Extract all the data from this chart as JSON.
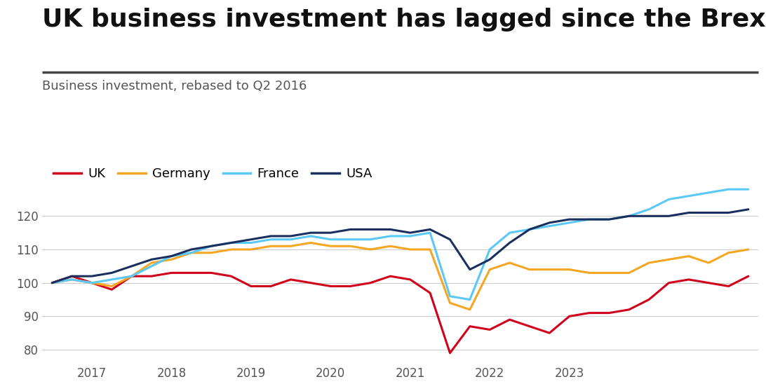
{
  "title": "UK business investment has lagged since the Brexit vote",
  "subtitle": "Business investment, rebased to Q2 2016",
  "title_fontsize": 26,
  "subtitle_fontsize": 13,
  "legend_fontsize": 13,
  "background_color": "#ffffff",
  "grid_color": "#cccccc",
  "series_order": [
    "UK",
    "Germany",
    "France",
    "USA"
  ],
  "series": {
    "UK": {
      "color": "#d0021b",
      "linewidth": 2.2,
      "data": [
        100,
        102,
        100,
        98,
        102,
        102,
        103,
        103,
        103,
        102,
        99,
        99,
        101,
        100,
        99,
        99,
        100,
        102,
        101,
        97,
        79,
        87,
        86,
        89,
        87,
        85,
        90,
        91,
        91,
        92,
        95,
        100,
        101,
        100,
        99,
        102
      ]
    },
    "Germany": {
      "color": "#f5a623",
      "linewidth": 2.2,
      "data": [
        100,
        101,
        100,
        99,
        102,
        106,
        107,
        109,
        109,
        110,
        110,
        111,
        111,
        112,
        111,
        111,
        110,
        111,
        110,
        110,
        94,
        92,
        104,
        106,
        104,
        104,
        104,
        103,
        103,
        103,
        106,
        107,
        108,
        106,
        109,
        110
      ]
    },
    "France": {
      "color": "#5bc8f5",
      "linewidth": 2.2,
      "data": [
        100,
        101,
        100,
        101,
        102,
        105,
        108,
        109,
        111,
        112,
        112,
        113,
        113,
        114,
        113,
        113,
        113,
        114,
        114,
        115,
        96,
        95,
        110,
        115,
        116,
        117,
        118,
        119,
        119,
        120,
        122,
        125,
        126,
        127,
        128,
        128
      ]
    },
    "USA": {
      "color": "#1a2f5e",
      "linewidth": 2.2,
      "data": [
        100,
        102,
        102,
        103,
        105,
        107,
        108,
        110,
        111,
        112,
        113,
        114,
        114,
        115,
        115,
        116,
        116,
        116,
        115,
        116,
        113,
        104,
        107,
        112,
        116,
        118,
        119,
        119,
        119,
        120,
        120,
        120,
        121,
        121,
        121,
        122
      ]
    }
  },
  "n_points": 36,
  "xtick_positions": [
    2,
    6,
    10,
    14,
    18,
    22,
    26
  ],
  "xtick_labels": [
    "2017",
    "2018",
    "2019",
    "2020",
    "2021",
    "2022",
    "2023"
  ],
  "ylim": [
    77,
    132
  ],
  "yticks": [
    80,
    90,
    100,
    110,
    120
  ]
}
